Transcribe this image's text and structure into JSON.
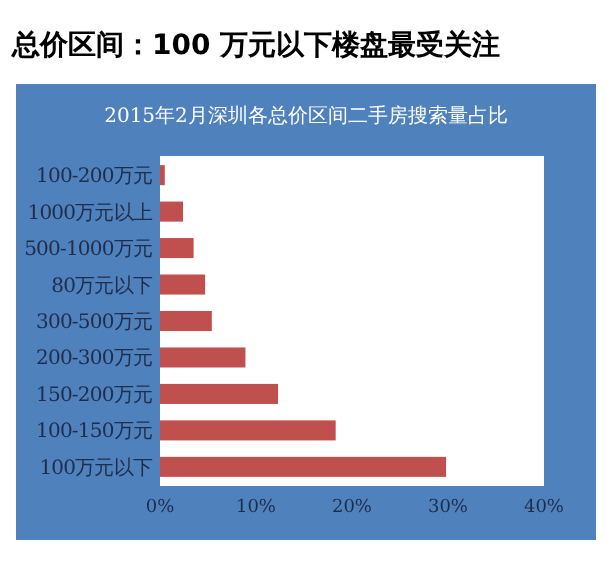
{
  "chart_data": {
    "type": "bar",
    "orientation": "horizontal",
    "title": "总价区间：100 万元以下楼盘最受关注",
    "subtitle": "2015年2月深圳各总价区间二手房搜索量占比",
    "categories": [
      "100-200万元",
      "1000万元以上",
      "500-1000万元",
      "80万元以下",
      "300-500万元",
      "200-300万元",
      "150-200万元",
      "100-150万元",
      "100万元以下"
    ],
    "values": [
      0.5,
      2.4,
      3.5,
      4.7,
      5.4,
      8.9,
      12.3,
      18.3,
      29.8
    ],
    "color": "#c0504d",
    "xlim": [
      0,
      40
    ],
    "xticks": [
      {
        "value": 0,
        "label": "0%"
      },
      {
        "value": 10,
        "label": "10%"
      },
      {
        "value": 20,
        "label": "20%"
      },
      {
        "value": 30,
        "label": "30%"
      },
      {
        "value": 40,
        "label": "40%"
      }
    ],
    "grid": false
  }
}
